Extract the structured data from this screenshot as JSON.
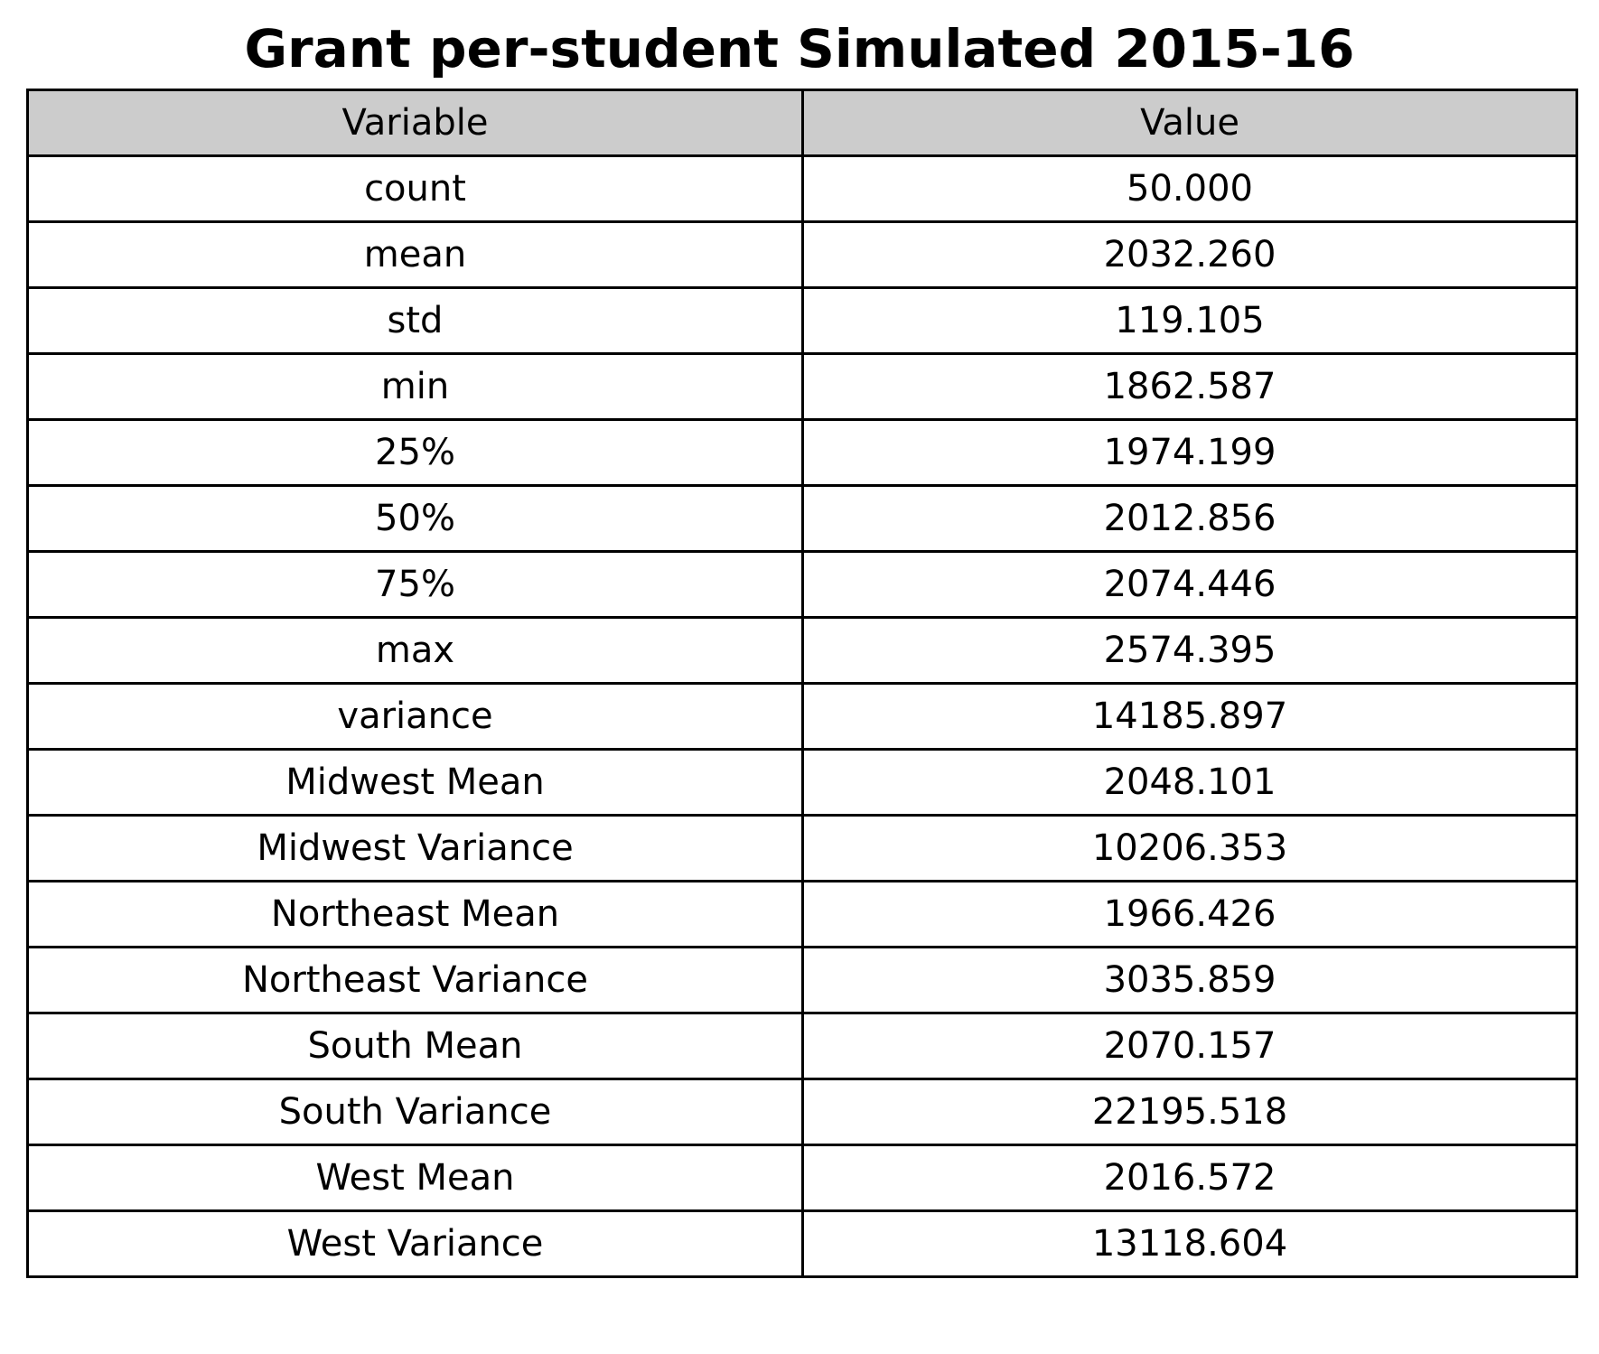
{
  "chart_data": {
    "type": "table",
    "title": "Grant per-student Simulated 2015-16",
    "columns": [
      "Variable",
      "Value"
    ],
    "rows": [
      {
        "variable": "count",
        "value": "50.000"
      },
      {
        "variable": "mean",
        "value": "2032.260"
      },
      {
        "variable": "std",
        "value": "119.105"
      },
      {
        "variable": "min",
        "value": "1862.587"
      },
      {
        "variable": "25%",
        "value": "1974.199"
      },
      {
        "variable": "50%",
        "value": "2012.856"
      },
      {
        "variable": "75%",
        "value": "2074.446"
      },
      {
        "variable": "max",
        "value": "2574.395"
      },
      {
        "variable": "variance",
        "value": "14185.897"
      },
      {
        "variable": "Midwest Mean",
        "value": "2048.101"
      },
      {
        "variable": "Midwest Variance",
        "value": "10206.353"
      },
      {
        "variable": "Northeast Mean",
        "value": "1966.426"
      },
      {
        "variable": "Northeast Variance",
        "value": "3035.859"
      },
      {
        "variable": "South Mean",
        "value": "2070.157"
      },
      {
        "variable": "South Variance",
        "value": "22195.518"
      },
      {
        "variable": "West Mean",
        "value": "2016.572"
      },
      {
        "variable": "West Variance",
        "value": "13118.604"
      }
    ],
    "colors": {
      "header_background": "#cccccc",
      "cell_background": "#ffffff",
      "border": "#000000"
    }
  }
}
